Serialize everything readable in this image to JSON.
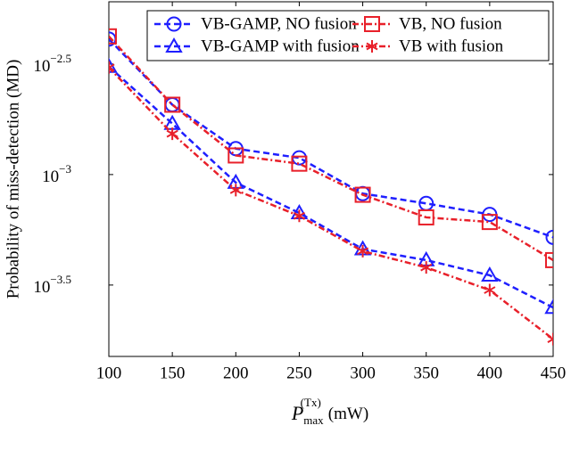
{
  "chart_data": {
    "type": "line",
    "ylabel": "Probability of miss-detection (MD)",
    "xlabel": {
      "symbol": "P",
      "sub": "max",
      "sup": "(Tx)",
      "unit": "(mW)"
    },
    "x": [
      100,
      150,
      200,
      250,
      300,
      350,
      400,
      450
    ],
    "xlim": [
      100,
      450
    ],
    "xticks": [
      100,
      150,
      200,
      250,
      300,
      350,
      400,
      450
    ],
    "ylog": true,
    "ylim": [
      0.0001503,
      0.00605
    ],
    "yticks": [
      {
        "value": 0.00316228,
        "label": "10",
        "exponent": "−2.5"
      },
      {
        "value": 0.001,
        "label": "10",
        "exponent": "−3"
      },
      {
        "value": 0.000316228,
        "label": "10",
        "exponent": "−3.5"
      }
    ],
    "legend": "upper right",
    "series": [
      {
        "name": "VB-GAMP, NO fusion",
        "color": "#1f1fff",
        "dash": "dashed",
        "marker": "circle",
        "values": [
          0.0041,
          0.00207,
          0.00131,
          0.00119,
          0.00082,
          0.00074,
          0.00066,
          0.00052
        ]
      },
      {
        "name": "VB, NO fusion",
        "color": "#e8202a",
        "dash": "dashdot",
        "marker": "square",
        "values": [
          0.00422,
          0.00207,
          0.00122,
          0.00112,
          0.00081,
          0.00064,
          0.00061,
          0.00041
        ]
      },
      {
        "name": "VB-GAMP with fusion",
        "color": "#1f1fff",
        "dash": "dashed",
        "marker": "triangle",
        "values": [
          0.00308,
          0.0017,
          0.00092,
          0.00067,
          0.00046,
          0.00041,
          0.00035,
          0.00025
        ]
      },
      {
        "name": "VB with fusion",
        "color": "#e8202a",
        "dash": "dashdot",
        "marker": "star",
        "values": [
          0.00305,
          0.00153,
          0.00085,
          0.00065,
          0.00045,
          0.00038,
          0.0003,
          0.00018
        ]
      }
    ]
  }
}
